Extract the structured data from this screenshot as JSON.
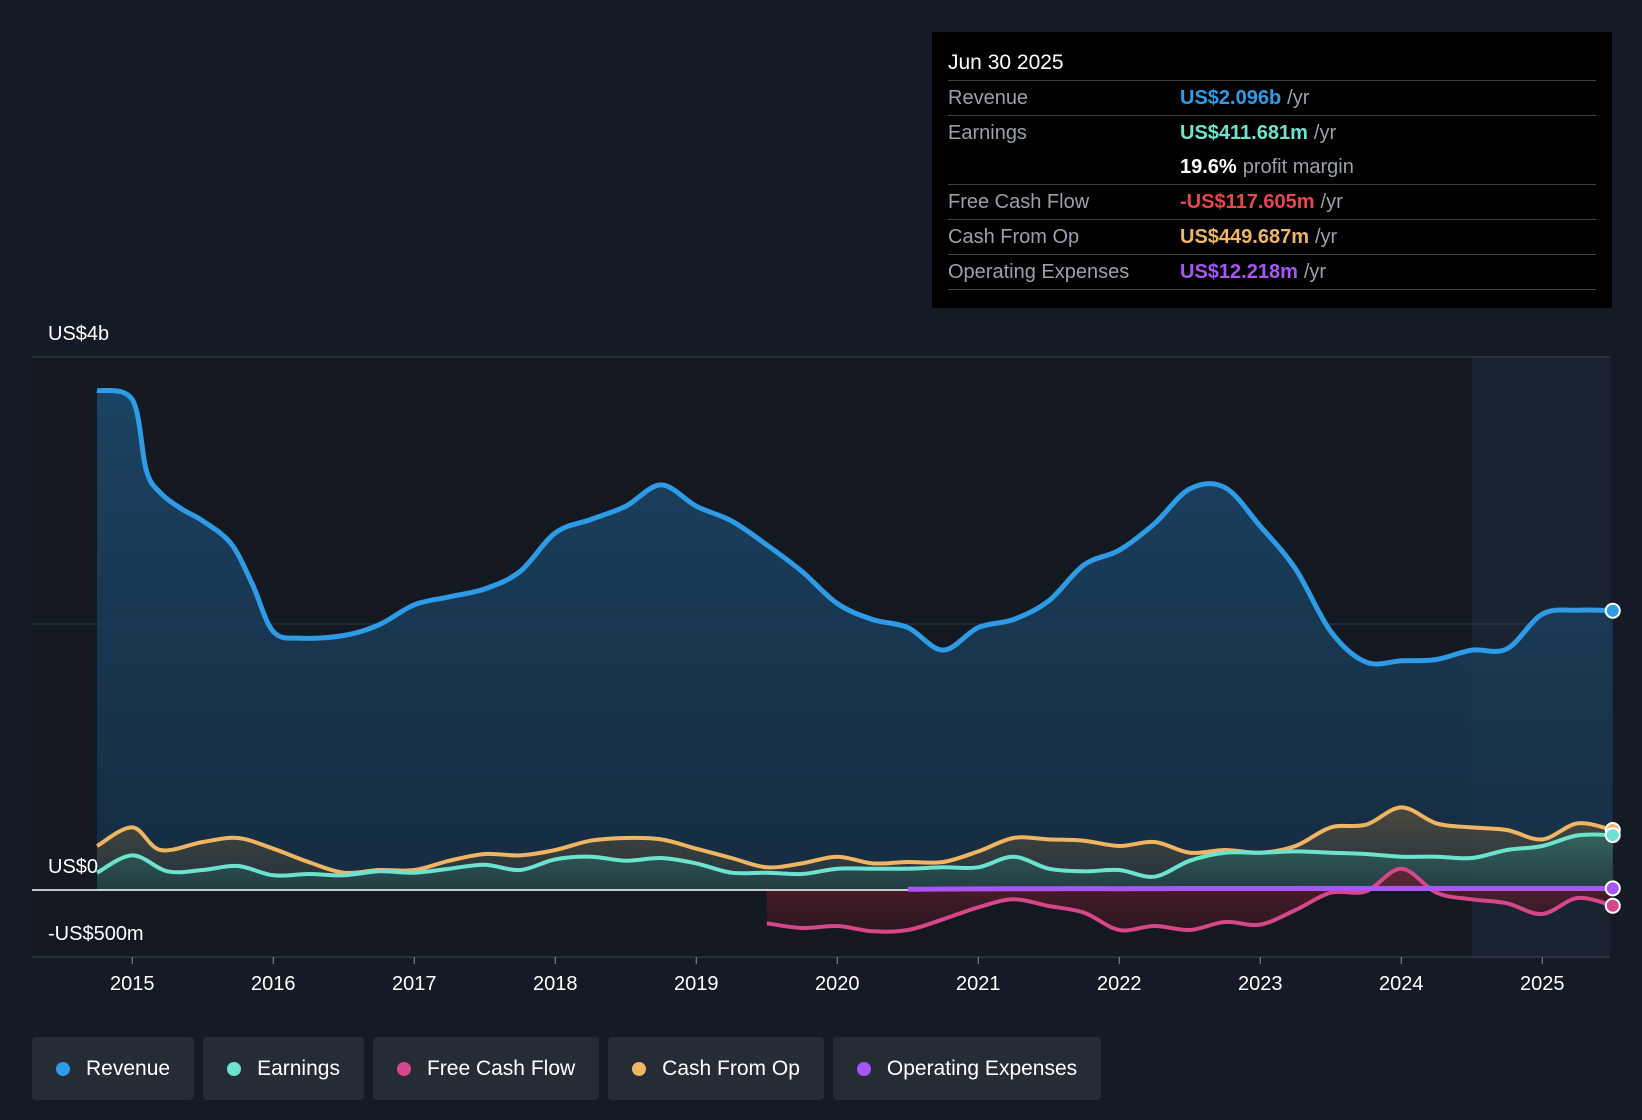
{
  "tooltip": {
    "date": "Jun 30 2025",
    "rows": [
      {
        "label": "Revenue",
        "value": "US$2.096b",
        "unit": "/yr",
        "color": "#2d9be6"
      },
      {
        "label": "Earnings",
        "value": "US$411.681m",
        "unit": "/yr",
        "color": "#6de3cf"
      },
      {
        "label": "",
        "value": "19.6%",
        "unit": "profit margin",
        "color": "#ffffff"
      },
      {
        "label": "Free Cash Flow",
        "value": "-US$117.605m",
        "unit": "/yr",
        "color": "#e8454d"
      },
      {
        "label": "Cash From Op",
        "value": "US$449.687m",
        "unit": "/yr",
        "color": "#f0b562"
      },
      {
        "label": "Operating Expenses",
        "value": "US$12.218m",
        "unit": "/yr",
        "color": "#a855f7"
      }
    ]
  },
  "legend": [
    {
      "label": "Revenue",
      "color": "#2d9be6"
    },
    {
      "label": "Earnings",
      "color": "#6de3cf"
    },
    {
      "label": "Free Cash Flow",
      "color": "#d6468a"
    },
    {
      "label": "Cash From Op",
      "color": "#f0b562"
    },
    {
      "label": "Operating Expenses",
      "color": "#a855f7"
    }
  ],
  "chart_data": {
    "type": "area",
    "y_labels": {
      "top": "US$4b",
      "zero": "US$0",
      "bottom": "-US$500m"
    },
    "ylim": [
      -500,
      4000
    ],
    "xlim": [
      2014.75,
      2025.5
    ],
    "forecast_start": 2024.5,
    "x_ticks": [
      "2015",
      "2016",
      "2017",
      "2018",
      "2019",
      "2020",
      "2021",
      "2022",
      "2023",
      "2024",
      "2025"
    ],
    "x_tick_values": [
      2015,
      2016,
      2017,
      2018,
      2019,
      2020,
      2021,
      2022,
      2023,
      2024,
      2025
    ],
    "series": [
      {
        "name": "Revenue",
        "color": "#2d9be6",
        "x": [
          2014.75,
          2015.0,
          2015.1,
          2015.2,
          2015.35,
          2015.5,
          2015.7,
          2015.85,
          2016.0,
          2016.2,
          2016.5,
          2016.75,
          2017.0,
          2017.25,
          2017.5,
          2017.75,
          2018.0,
          2018.25,
          2018.5,
          2018.75,
          2019.0,
          2019.25,
          2019.5,
          2019.75,
          2020.0,
          2020.25,
          2020.5,
          2020.75,
          2021.0,
          2021.25,
          2021.5,
          2021.75,
          2022.0,
          2022.25,
          2022.5,
          2022.75,
          2023.0,
          2023.25,
          2023.5,
          2023.75,
          2024.0,
          2024.25,
          2024.5,
          2024.75,
          2025.0,
          2025.25,
          2025.5
        ],
        "values": [
          3750,
          3680,
          3150,
          2980,
          2860,
          2770,
          2600,
          2300,
          1940,
          1890,
          1910,
          1990,
          2140,
          2200,
          2260,
          2390,
          2680,
          2780,
          2880,
          3040,
          2880,
          2770,
          2590,
          2390,
          2150,
          2030,
          1970,
          1800,
          1970,
          2030,
          2170,
          2440,
          2550,
          2750,
          3010,
          3020,
          2730,
          2410,
          1940,
          1710,
          1720,
          1730,
          1800,
          1810,
          2070,
          2100,
          2096
        ]
      },
      {
        "name": "Earnings",
        "color": "#6de3cf",
        "x": [
          2014.75,
          2015.0,
          2015.25,
          2015.5,
          2015.75,
          2016.0,
          2016.25,
          2016.5,
          2016.75,
          2017.0,
          2017.25,
          2017.5,
          2017.75,
          2018.0,
          2018.25,
          2018.5,
          2018.75,
          2019.0,
          2019.25,
          2019.5,
          2019.75,
          2020.0,
          2020.25,
          2020.5,
          2020.75,
          2021.0,
          2021.25,
          2021.5,
          2021.75,
          2022.0,
          2022.25,
          2022.5,
          2022.75,
          2023.0,
          2023.25,
          2023.5,
          2023.75,
          2024.0,
          2024.25,
          2024.5,
          2024.75,
          2025.0,
          2025.25,
          2025.5
        ],
        "values": [
          130,
          260,
          140,
          150,
          180,
          110,
          120,
          110,
          140,
          130,
          160,
          190,
          150,
          230,
          250,
          220,
          240,
          200,
          130,
          130,
          120,
          160,
          160,
          160,
          170,
          170,
          250,
          160,
          140,
          150,
          100,
          220,
          280,
          280,
          290,
          280,
          270,
          250,
          250,
          240,
          300,
          330,
          410,
          412
        ]
      },
      {
        "name": "Cash From Op",
        "color": "#f0b562",
        "x": [
          2014.75,
          2015.0,
          2015.2,
          2015.5,
          2015.75,
          2016.0,
          2016.25,
          2016.5,
          2016.75,
          2017.0,
          2017.25,
          2017.5,
          2017.75,
          2018.0,
          2018.25,
          2018.5,
          2018.75,
          2019.0,
          2019.25,
          2019.5,
          2019.75,
          2020.0,
          2020.25,
          2020.5,
          2020.75,
          2021.0,
          2021.25,
          2021.5,
          2021.75,
          2022.0,
          2022.25,
          2022.5,
          2022.75,
          2023.0,
          2023.25,
          2023.5,
          2023.75,
          2024.0,
          2024.25,
          2024.5,
          2024.75,
          2025.0,
          2025.25,
          2025.5
        ],
        "values": [
          330,
          470,
          300,
          360,
          390,
          310,
          210,
          130,
          150,
          150,
          220,
          270,
          260,
          300,
          370,
          390,
          380,
          310,
          240,
          170,
          200,
          250,
          200,
          210,
          210,
          290,
          390,
          380,
          370,
          330,
          360,
          280,
          300,
          280,
          330,
          470,
          490,
          620,
          500,
          470,
          450,
          380,
          500,
          450
        ]
      },
      {
        "name": "Free Cash Flow",
        "color": "#d6468a",
        "x": [
          2019.5,
          2019.75,
          2020.0,
          2020.25,
          2020.5,
          2020.75,
          2021.0,
          2021.25,
          2021.5,
          2021.75,
          2022.0,
          2022.25,
          2022.5,
          2022.75,
          2023.0,
          2023.25,
          2023.5,
          2023.75,
          2024.0,
          2024.25,
          2024.5,
          2024.75,
          2025.0,
          2025.25,
          2025.5
        ],
        "values": [
          -250,
          -285,
          -270,
          -310,
          -300,
          -220,
          -130,
          -70,
          -120,
          -170,
          -300,
          -270,
          -300,
          -240,
          -260,
          -150,
          -20,
          -10,
          160,
          -20,
          -70,
          -100,
          -180,
          -60,
          -118
        ]
      },
      {
        "name": "Operating Expenses",
        "color": "#a855f7",
        "x": [
          2020.5,
          2021.0,
          2021.5,
          2022.0,
          2022.5,
          2023.0,
          2023.5,
          2024.0,
          2024.5,
          2025.0,
          2025.5
        ],
        "values": [
          5,
          8,
          10,
          10,
          11,
          11,
          12,
          12,
          12,
          12,
          12
        ]
      }
    ]
  }
}
